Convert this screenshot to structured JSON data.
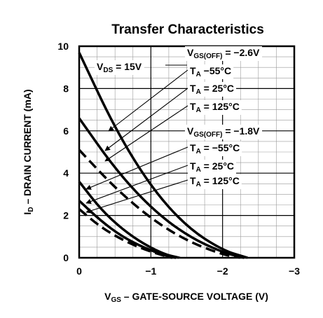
{
  "chart_data": {
    "type": "line",
    "title": "Transfer Characteristics",
    "xlabel": "V_GS – GATE-SOURCE VOLTAGE (V)",
    "ylabel": "I_D – DRAIN CURRENT (mA)",
    "xlim": [
      0,
      -3
    ],
    "ylim": [
      0,
      10
    ],
    "x_ticks": [
      "0",
      "−1",
      "−2",
      "−3"
    ],
    "y_ticks": [
      "0",
      "2",
      "4",
      "6",
      "8",
      "10"
    ],
    "grid": true,
    "annotations": {
      "vds": "V_DS = 15V",
      "group1_header": "V_GS(OFF) = −2.6V",
      "group2_header": "V_GS(OFF) = −1.8V",
      "ta_labels": [
        "T_A −55°C",
        "T_A = 25°C",
        "T_A = 125°C",
        "T_A = −55°C",
        "T_A = 25°C",
        "T_A = 125°C"
      ]
    },
    "series": [
      {
        "group": "V_GS(OFF) = −2.6V",
        "temp": "−55°C",
        "style": "solid",
        "x": [
          0,
          -0.5,
          -1.0,
          -1.5,
          -2.0,
          -2.35
        ],
        "y": [
          9.7,
          6.1,
          3.35,
          1.45,
          0.35,
          0
        ]
      },
      {
        "group": "V_GS(OFF) = −2.6V",
        "temp": "25°C",
        "style": "solid",
        "x": [
          0,
          -0.5,
          -1.0,
          -1.5,
          -2.0,
          -2.3
        ],
        "y": [
          6.6,
          4.2,
          2.35,
          1.05,
          0.25,
          0
        ]
      },
      {
        "group": "V_GS(OFF) = −2.6V",
        "temp": "125°C",
        "style": "dashed",
        "x": [
          0,
          -0.5,
          -1.0,
          -1.5,
          -2.0,
          -2.25
        ],
        "y": [
          5.1,
          3.3,
          1.85,
          0.8,
          0.15,
          0
        ]
      },
      {
        "group": "V_GS(OFF) = −1.8V",
        "temp": "−55°C",
        "style": "solid",
        "x": [
          0,
          -0.3,
          -0.6,
          -0.9,
          -1.2,
          -1.4
        ],
        "y": [
          3.6,
          2.3,
          1.35,
          0.65,
          0.15,
          0
        ]
      },
      {
        "group": "V_GS(OFF) = −1.8V",
        "temp": "25°C",
        "style": "solid",
        "x": [
          0,
          -0.3,
          -0.6,
          -0.9,
          -1.2,
          -1.35
        ],
        "y": [
          2.7,
          1.75,
          1.0,
          0.48,
          0.1,
          0
        ]
      },
      {
        "group": "V_GS(OFF) = −1.8V",
        "temp": "125°C",
        "style": "dashed",
        "x": [
          0,
          -0.3,
          -0.6,
          -0.9,
          -1.2,
          -1.3
        ],
        "y": [
          2.3,
          1.45,
          0.85,
          0.4,
          0.08,
          0
        ]
      }
    ]
  }
}
